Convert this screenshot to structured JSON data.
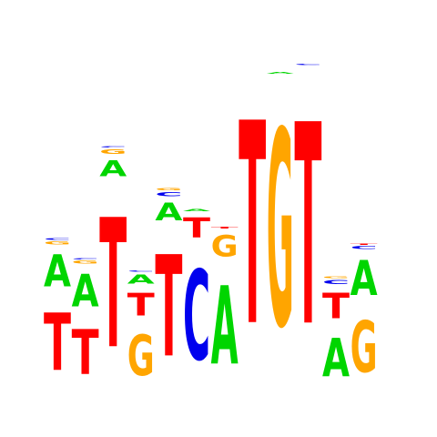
{
  "colors": {
    "A": "#00d500",
    "C": "#0000ee",
    "G": "#ffa500",
    "T": "#ff0000",
    "background": "#ffffff"
  },
  "positions": [
    [
      {
        "base": "T",
        "bits": 0.96
      },
      {
        "base": "A",
        "bits": 0.54
      },
      {
        "base": "G",
        "bits": 0.05
      },
      {
        "base": "C",
        "bits": 0.03
      }
    ],
    [
      {
        "base": "T",
        "bits": 0.75
      },
      {
        "base": "A",
        "bits": 0.55
      },
      {
        "base": "G",
        "bits": 0.05
      },
      {
        "base": "C",
        "bits": 0.02
      }
    ],
    [
      {
        "base": "T",
        "bits": 2.17
      },
      {
        "base": "A",
        "bits": 0.27
      },
      {
        "base": "G",
        "bits": 0.08
      },
      {
        "base": "C",
        "bits": 0.02
      }
    ],
    [
      {
        "base": "G",
        "bits": 0.69
      },
      {
        "base": "T",
        "bits": 0.38
      },
      {
        "base": "A",
        "bits": 0.15
      },
      {
        "base": "C",
        "bits": 0.02
      }
    ],
    [
      {
        "base": "T",
        "bits": 1.7
      },
      {
        "base": "A",
        "bits": 0.3
      },
      {
        "base": "C",
        "bits": 0.07
      },
      {
        "base": "G",
        "bits": 0.04
      }
    ],
    [
      {
        "base": "C",
        "bits": 1.51
      },
      {
        "base": "T",
        "bits": 0.34
      },
      {
        "base": "A",
        "bits": 0.04
      }
    ],
    [
      {
        "base": "A",
        "bits": 1.31
      },
      {
        "base": "G",
        "bits": 0.36
      },
      {
        "base": "T",
        "bits": 0.03
      }
    ],
    [
      {
        "base": "T",
        "bits": 3.4
      }
    ],
    [
      {
        "base": "G",
        "bits": 3.29
      },
      {
        "base": "A",
        "bits": 0.03
      }
    ],
    [
      {
        "base": "T",
        "bits": 3.38
      },
      {
        "base": "C",
        "bits": 0.02
      }
    ],
    [
      {
        "base": "A",
        "bits": 0.65
      },
      {
        "base": "T",
        "bits": 0.43
      },
      {
        "base": "C",
        "bits": 0.07
      },
      {
        "base": "G",
        "bits": 0.03
      }
    ],
    [
      {
        "base": "G",
        "bits": 0.86
      },
      {
        "base": "A",
        "bits": 0.59
      },
      {
        "base": "C",
        "bits": 0.05
      },
      {
        "base": "T",
        "bits": 0.02
      }
    ]
  ]
}
